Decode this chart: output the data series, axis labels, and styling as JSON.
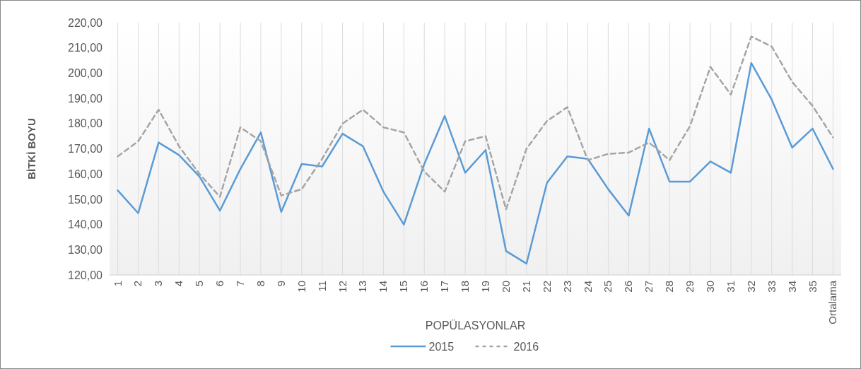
{
  "chart_data": {
    "type": "line",
    "xlabel": "POPÜLASYONLAR",
    "ylabel": "BİTKİ BOYU",
    "categories": [
      "1",
      "2",
      "3",
      "4",
      "5",
      "6",
      "7",
      "8",
      "9",
      "10",
      "11",
      "12",
      "13",
      "14",
      "15",
      "16",
      "17",
      "18",
      "19",
      "20",
      "21",
      "22",
      "23",
      "24",
      "25",
      "26",
      "27",
      "28",
      "29",
      "30",
      "31",
      "32",
      "33",
      "34",
      "35",
      "Ortalama"
    ],
    "series": [
      {
        "name": "2015",
        "color": "#5b9bd5",
        "line_style": "solid",
        "values": [
          153.5,
          144.5,
          172.5,
          167.5,
          159,
          145.5,
          162,
          176.5,
          145,
          164,
          163,
          176,
          171,
          153,
          140,
          164,
          183,
          160.5,
          169.5,
          129.5,
          124.5,
          156.5,
          167,
          166,
          154,
          143.5,
          178,
          157,
          157,
          165,
          160.5,
          204,
          189.5,
          170.5,
          178,
          162
        ]
      },
      {
        "name": "2016",
        "color": "#a5a5a5",
        "line_style": "dashed",
        "values": [
          167,
          173,
          185.5,
          171,
          160,
          151,
          178.5,
          173,
          151.5,
          154,
          166,
          180,
          185.5,
          178.5,
          176.5,
          161,
          153,
          173,
          175,
          146,
          170,
          181,
          186.5,
          165.5,
          168,
          168.5,
          172.5,
          165.5,
          179,
          202.5,
          191.5,
          214.5,
          210.5,
          196.5,
          187,
          174.5
        ]
      }
    ],
    "ylim": [
      120,
      220
    ],
    "yticks": [
      {
        "value": 120,
        "label": "120,00"
      },
      {
        "value": 130,
        "label": "130,00"
      },
      {
        "value": 140,
        "label": "140,00"
      },
      {
        "value": 150,
        "label": "150,00"
      },
      {
        "value": 160,
        "label": "160,00"
      },
      {
        "value": 170,
        "label": "170,00"
      },
      {
        "value": 180,
        "label": "180,00"
      },
      {
        "value": 190,
        "label": "190,00"
      },
      {
        "value": 200,
        "label": "200,00"
      },
      {
        "value": 210,
        "label": "210,00"
      },
      {
        "value": 220,
        "label": "220,00"
      }
    ],
    "grid": "x",
    "legend": "bottom"
  }
}
